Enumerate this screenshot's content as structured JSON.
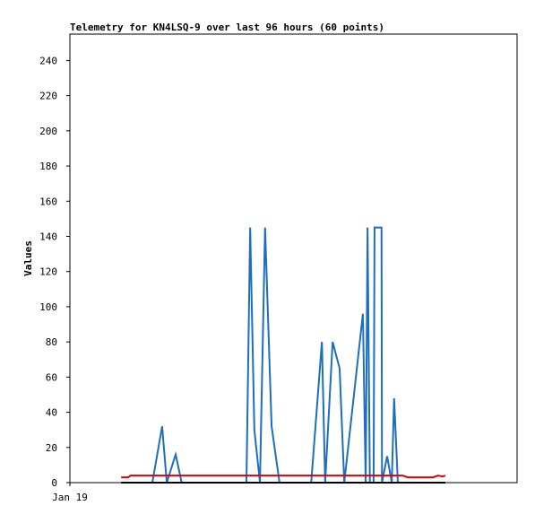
{
  "chart_data": {
    "type": "line",
    "title": "Telemetry for KN4LSQ-9 over last 96 hours (60 points)",
    "y_label": "Values",
    "xlim": [
      0,
      96
    ],
    "xticks": [
      {
        "value": 0,
        "label": "Jan 19"
      }
    ],
    "ylim": [
      0,
      255
    ],
    "yticks": [
      0,
      20,
      40,
      60,
      80,
      100,
      120,
      140,
      160,
      180,
      200,
      220,
      240
    ],
    "series": [
      {
        "color": "#1e6ebf",
        "x": [
          17.7,
          19.8,
          20.8,
          22.7,
          24.0,
          37.9,
          38.7,
          39.6,
          40.8,
          41.9,
          43.3,
          45.0,
          51.8,
          54.1,
          54.8,
          56.4,
          57.9,
          58.9,
          62.9,
          63.5,
          63.9,
          64.4,
          65.2,
          65.4,
          66.9,
          67.0,
          68.1,
          69.1,
          69.6,
          70.4
        ],
        "values": [
          0,
          32,
          0,
          16,
          0,
          0,
          145,
          30,
          0,
          145,
          32,
          0,
          0,
          80,
          0,
          80,
          65,
          0,
          96,
          0,
          145,
          0,
          0,
          145,
          145,
          0,
          15,
          0,
          48,
          0
        ]
      },
      {
        "color": "#e00000",
        "x": [
          11.0,
          12.5,
          13.0,
          71.5,
          72.5,
          78.0,
          79.0,
          80.0,
          80.6
        ],
        "values": [
          3,
          3,
          4,
          4,
          3,
          3,
          4,
          3.5,
          4
        ]
      },
      {
        "color": "#000000",
        "x": [
          11.0,
          80.6
        ],
        "values": [
          0,
          0
        ]
      }
    ]
  }
}
